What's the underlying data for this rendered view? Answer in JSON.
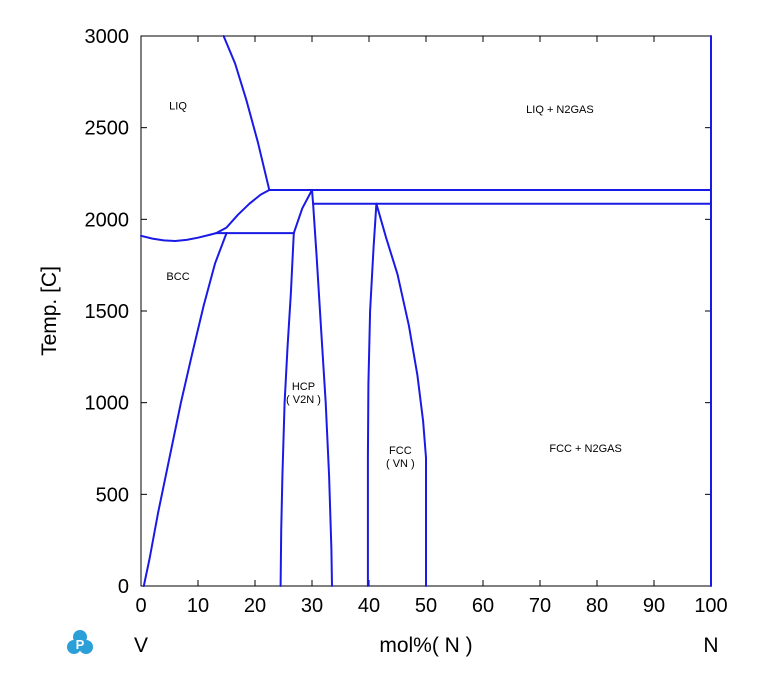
{
  "chart_data": {
    "type": "line",
    "title": "",
    "xlabel": "mol%( N )",
    "ylabel": "Temp. [C]",
    "xlim": [
      0,
      100
    ],
    "ylim": [
      0,
      3000
    ],
    "x_ticks": [
      0,
      10,
      20,
      30,
      40,
      50,
      60,
      70,
      80,
      90,
      100
    ],
    "y_ticks": [
      0,
      500,
      1000,
      1500,
      2000,
      2500,
      3000
    ],
    "grid": false,
    "line_color": "#1a1ae6",
    "left_component": "V",
    "right_component": "N",
    "region_labels": [
      {
        "lines": [
          "LIQ"
        ],
        "x": 6.5,
        "y": 2600
      },
      {
        "lines": [
          "LIQ + N2GAS"
        ],
        "x": 73.5,
        "y": 2580
      },
      {
        "lines": [
          "BCC"
        ],
        "x": 6.5,
        "y": 1670
      },
      {
        "lines": [
          "HCP",
          "( V2N )"
        ],
        "x": 28.5,
        "y": 1070
      },
      {
        "lines": [
          "FCC",
          "( VN )"
        ],
        "x": 45.5,
        "y": 720
      },
      {
        "lines": [
          "FCC + N2GAS"
        ],
        "x": 78,
        "y": 730
      }
    ],
    "series": [
      {
        "points": [
          [
            14.5,
            3000
          ],
          [
            16.5,
            2850
          ],
          [
            18.5,
            2650
          ],
          [
            20.5,
            2420
          ],
          [
            22.5,
            2160
          ]
        ]
      },
      {
        "points": [
          [
            13.2,
            1925
          ],
          [
            15,
            1955
          ],
          [
            17,
            2025
          ],
          [
            19,
            2085
          ],
          [
            21,
            2135
          ],
          [
            22.5,
            2160
          ]
        ]
      },
      {
        "points": [
          [
            0,
            1910
          ],
          [
            2,
            1895
          ],
          [
            4,
            1885
          ],
          [
            6,
            1882
          ],
          [
            8,
            1888
          ],
          [
            10,
            1900
          ],
          [
            12,
            1915
          ],
          [
            13.2,
            1925
          ]
        ]
      },
      {
        "points": [
          [
            13.2,
            1925
          ],
          [
            15,
            1925
          ]
        ]
      },
      {
        "points": [
          [
            22.5,
            2160
          ],
          [
            100,
            2160
          ]
        ]
      },
      {
        "points": [
          [
            15,
            1925
          ],
          [
            26.8,
            1925
          ]
        ]
      },
      {
        "points": [
          [
            0.5,
            0
          ],
          [
            1.5,
            150
          ],
          [
            3,
            400
          ],
          [
            5,
            700
          ],
          [
            7,
            1000
          ],
          [
            9,
            1270
          ],
          [
            11,
            1530
          ],
          [
            13,
            1760
          ],
          [
            15,
            1925
          ]
        ]
      },
      {
        "points": [
          [
            26.8,
            1925
          ],
          [
            28.3,
            2060
          ],
          [
            30,
            2160
          ]
        ]
      },
      {
        "points": [
          [
            30,
            2160
          ],
          [
            30.2,
            2085
          ],
          [
            100,
            2085
          ]
        ]
      },
      {
        "points": [
          [
            26.8,
            1925
          ],
          [
            26.3,
            1600
          ],
          [
            25.7,
            1300
          ],
          [
            25.2,
            1000
          ],
          [
            24.8,
            600
          ],
          [
            24.6,
            300
          ],
          [
            24.5,
            0
          ]
        ]
      },
      {
        "points": [
          [
            30.2,
            2085
          ],
          [
            30.8,
            1800
          ],
          [
            31.6,
            1400
          ],
          [
            32.4,
            1000
          ],
          [
            33,
            600
          ],
          [
            33.4,
            200
          ],
          [
            33.5,
            0
          ]
        ]
      },
      {
        "points": [
          [
            41.3,
            2085
          ],
          [
            40.8,
            1850
          ],
          [
            40.2,
            1500
          ],
          [
            39.9,
            1100
          ],
          [
            39.8,
            700
          ],
          [
            39.8,
            300
          ],
          [
            39.8,
            0
          ]
        ]
      },
      {
        "points": [
          [
            41.3,
            2085
          ],
          [
            43,
            1900
          ],
          [
            45,
            1700
          ],
          [
            47,
            1420
          ],
          [
            48.5,
            1150
          ],
          [
            49.5,
            900
          ],
          [
            50,
            700
          ],
          [
            50,
            0
          ]
        ]
      },
      {
        "points": [
          [
            100,
            0
          ],
          [
            100,
            3000
          ]
        ]
      }
    ]
  }
}
